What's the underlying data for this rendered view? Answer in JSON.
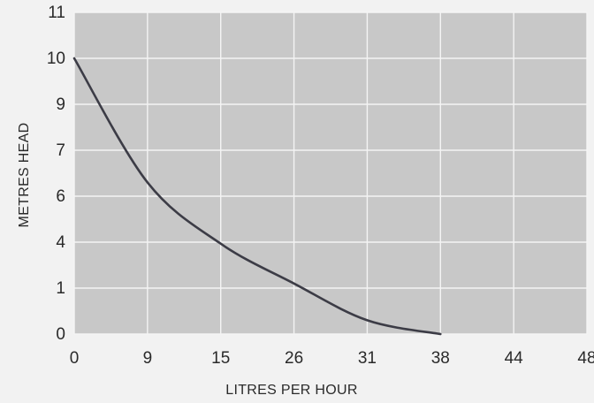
{
  "chart_data": {
    "type": "line",
    "xlabel": "LITRES PER HOUR",
    "ylabel": "METRES HEAD",
    "x_ticks": [
      "0",
      "9",
      "15",
      "26",
      "31",
      "38",
      "44",
      "48"
    ],
    "y_ticks": [
      "0",
      "1",
      "4",
      "6",
      "7",
      "9",
      "10",
      "11"
    ],
    "grid": true,
    "series": [
      {
        "x": [
          "0",
          "9",
          "15",
          "26",
          "31",
          "38"
        ],
        "y": [
          10,
          6.3,
          3.9,
          1.3,
          0.3,
          0
        ]
      }
    ],
    "colors": {
      "plot_background": "#c8c8c8",
      "grid": "#f4f4f4",
      "line": "#3c3c46",
      "page_background": "#f2f2f2"
    }
  }
}
